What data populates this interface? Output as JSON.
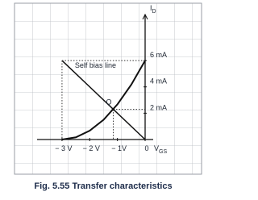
{
  "chart_data": {
    "type": "line",
    "xlabel": {
      "main": "V",
      "sub": "GS"
    },
    "ylabel": {
      "main": "I",
      "sub": "D"
    },
    "caption": "Fig. 5.55 Transfer characteristics",
    "xlim": [
      -3.9,
      0
    ],
    "ylim": [
      0,
      9.5
    ],
    "xticks": [
      {
        "value": -3,
        "label": "− 3 V"
      },
      {
        "value": -2,
        "label": "− 2 V"
      },
      {
        "value": -1,
        "label": "− 1V"
      },
      {
        "value": 0,
        "label": "0"
      }
    ],
    "yticks": [
      {
        "value": 2,
        "label": "2 mA"
      },
      {
        "value": 4,
        "label": "4 mA"
      },
      {
        "value": 6,
        "label": "6 mA"
      }
    ],
    "series": [
      {
        "color": "#111111",
        "x": [
          -3,
          -2.5,
          -2,
          -1.5,
          -1,
          -0.5,
          0
        ],
        "values": [
          0,
          0.17,
          0.67,
          1.5,
          2.67,
          4.17,
          6
        ]
      },
      {
        "name": "Self bias line",
        "color": "#111111",
        "x": [
          -3,
          0
        ],
        "values": [
          6,
          0
        ]
      }
    ],
    "q_point": {
      "label": "Q",
      "x": -1.15,
      "y": 2.29
    }
  }
}
